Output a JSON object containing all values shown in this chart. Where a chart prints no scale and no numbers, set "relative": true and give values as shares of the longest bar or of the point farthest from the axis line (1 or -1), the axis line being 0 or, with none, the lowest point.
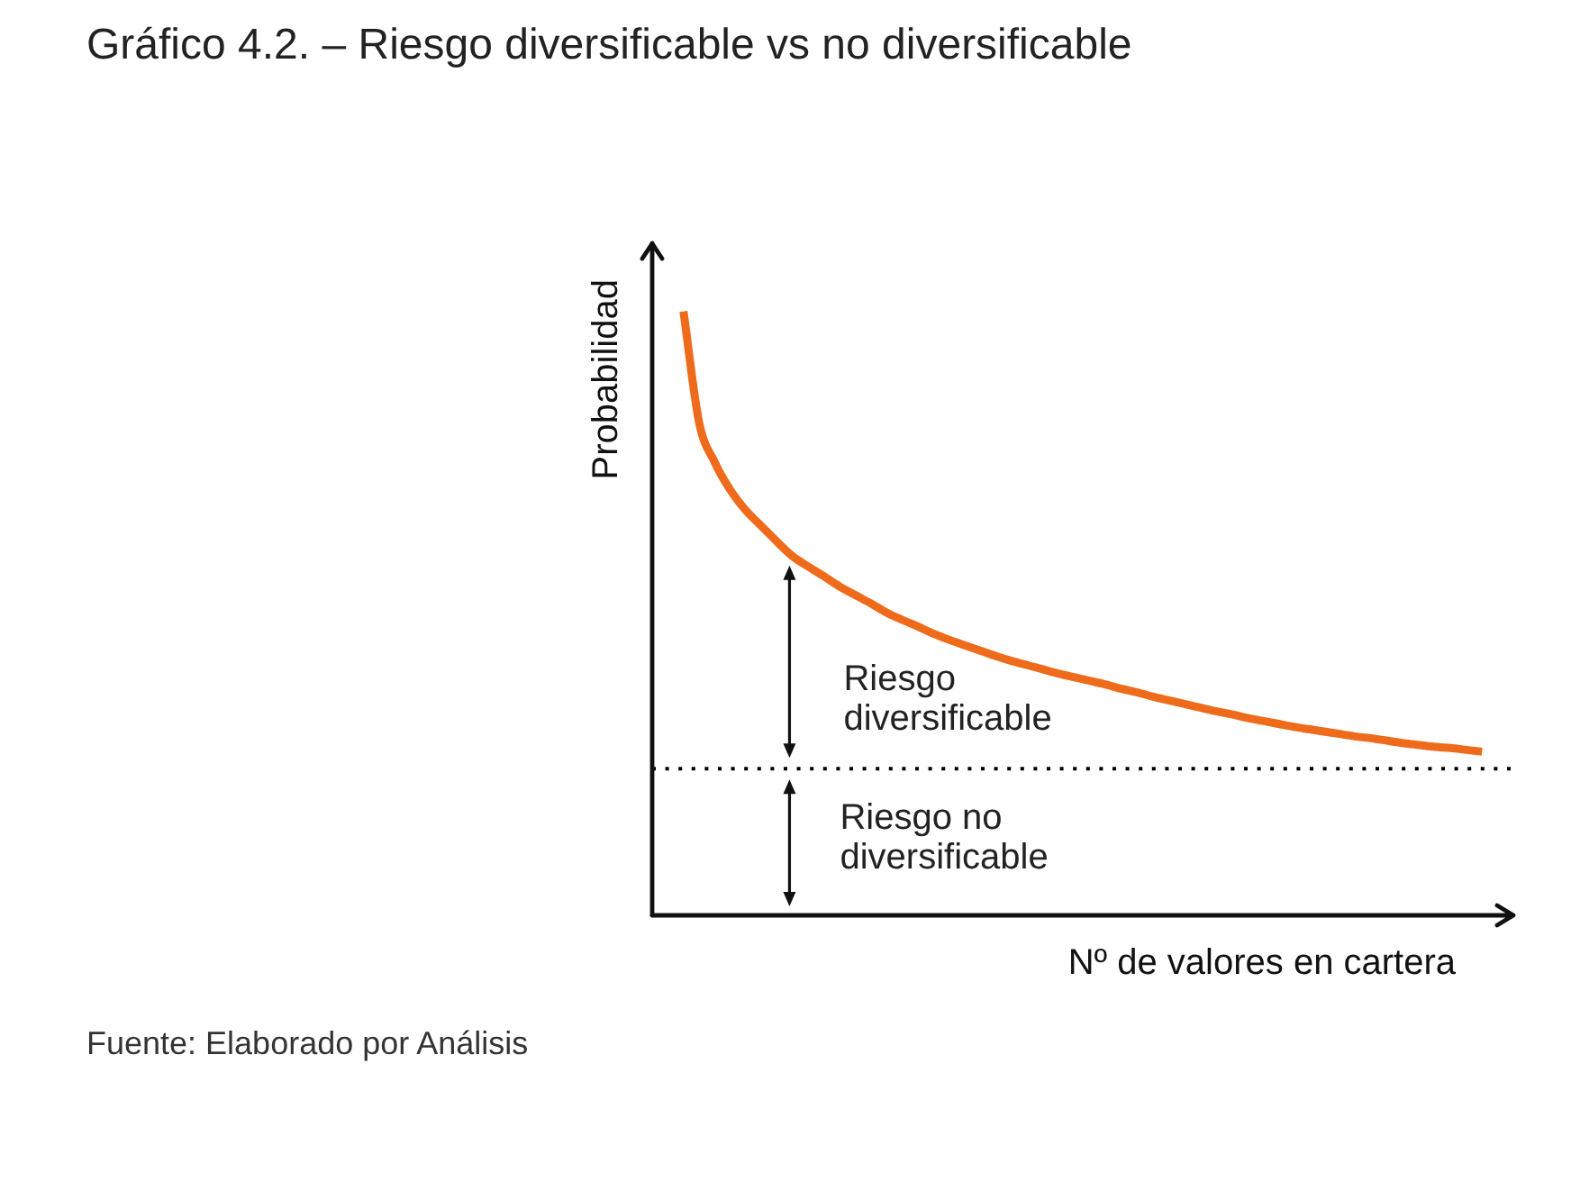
{
  "chart_data": {
    "type": "line",
    "title": "Gráfico 4.2. – Riesgo diversificable vs no diversificable",
    "xlabel": "Nº de valores en cartera",
    "ylabel": "Probabilidad",
    "relative": true,
    "categories": [
      null,
      null,
      null,
      null,
      null,
      null,
      null,
      null,
      null,
      null,
      null,
      null,
      null,
      null,
      null,
      null,
      null,
      null,
      null,
      null,
      null,
      null,
      null,
      null,
      null,
      null,
      null,
      null,
      null,
      null,
      null,
      null,
      null,
      null,
      null,
      null,
      null,
      null,
      null,
      null,
      null,
      null,
      null,
      null,
      null,
      null,
      null,
      null,
      null,
      null,
      null,
      null,
      null,
      null,
      null,
      null
    ],
    "series": [
      {
        "color": "#ef6b1c",
        "values": [
          null,
          null,
          1.0,
          0.816,
          0.75,
          0.704,
          0.67,
          0.644,
          0.618,
          0.594,
          0.577,
          0.561,
          0.544,
          0.53,
          0.516,
          0.501,
          0.489,
          0.478,
          0.466,
          0.456,
          0.447,
          0.438,
          0.429,
          0.421,
          0.414,
          0.407,
          0.4,
          0.394,
          0.388,
          0.382,
          0.375,
          0.369,
          0.362,
          0.356,
          0.35,
          0.344,
          0.338,
          0.333,
          0.327,
          0.322,
          0.317,
          0.312,
          0.308,
          0.304,
          0.3,
          0.296,
          0.293,
          0.289,
          0.285,
          0.282,
          0.279,
          0.277,
          0.274,
          0.271,
          null,
          null
        ]
      }
    ],
    "ref_lines": [
      {
        "axis": "y",
        "value": 0.243,
        "line_style": "dotted",
        "color": "#000000"
      }
    ],
    "annotations": [
      "Riesgo diversificable",
      "Riesgo no diversificable",
      "Fuente: Elaborado por Análisis"
    ]
  }
}
